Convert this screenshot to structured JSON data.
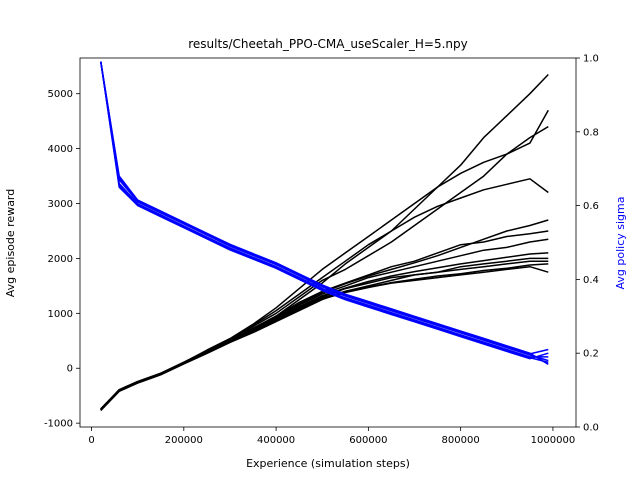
{
  "chart_data": {
    "type": "line",
    "title": "results/Cheetah_PPO-CMA_useScaler_H=5.npy",
    "xlabel": "Experience (simulation steps)",
    "ylabel_left": "Avg episode reward",
    "ylabel_right": "Avg policy sigma",
    "xlim": [
      -25000,
      1050000
    ],
    "ylim_left": [
      -1070,
      5650
    ],
    "ylim_right": [
      0.0,
      1.0
    ],
    "x_ticks": [
      0,
      200000,
      400000,
      600000,
      800000,
      1000000
    ],
    "y_left_ticks": [
      -1000,
      0,
      1000,
      2000,
      3000,
      4000,
      5000
    ],
    "y_right_ticks": [
      0.0,
      0.2,
      0.4,
      0.6,
      0.8,
      1.0
    ],
    "x_tick_labels": [
      "0",
      "200000",
      "400000",
      "600000",
      "800000",
      "1000000"
    ],
    "y_left_tick_labels": [
      "-1000",
      "0",
      "1000",
      "2000",
      "3000",
      "4000",
      "5000"
    ],
    "y_right_tick_labels": [
      "0.0",
      "0.2",
      "0.4",
      "0.6",
      "0.8",
      "1.0"
    ],
    "grid": false,
    "legend": "none",
    "colors": {
      "reward": "#000000",
      "sigma": "#0000ff",
      "right_axis_label": "#0000ff"
    },
    "x": [
      20000,
      60000,
      100000,
      150000,
      200000,
      250000,
      300000,
      350000,
      400000,
      450000,
      500000,
      550000,
      600000,
      650000,
      700000,
      750000,
      800000,
      850000,
      900000,
      950000,
      990000
    ],
    "reward_series": [
      {
        "axis": "left",
        "values": [
          -750,
          -400,
          -250,
          -100,
          100,
          300,
          500,
          700,
          900,
          1100,
          1300,
          1450,
          1550,
          1650,
          1700,
          1750,
          1800,
          1850,
          1900,
          1950,
          1950
        ]
      },
      {
        "axis": "left",
        "values": [
          -760,
          -410,
          -260,
          -110,
          90,
          280,
          480,
          720,
          950,
          1250,
          1550,
          1900,
          2200,
          2500,
          2900,
          3300,
          3700,
          4200,
          4600,
          5000,
          5350
        ]
      },
      {
        "axis": "left",
        "values": [
          -740,
          -390,
          -240,
          -90,
          110,
          320,
          520,
          760,
          1000,
          1300,
          1600,
          1800,
          2050,
          2300,
          2600,
          2900,
          3200,
          3500,
          3900,
          4200,
          4400
        ]
      },
      {
        "axis": "left",
        "values": [
          -770,
          -420,
          -270,
          -120,
          80,
          270,
          470,
          650,
          850,
          1050,
          1250,
          1400,
          1500,
          1600,
          1700,
          1750,
          1850,
          1900,
          1950,
          2000,
          2000
        ]
      },
      {
        "axis": "left",
        "values": [
          -750,
          -400,
          -250,
          -100,
          100,
          310,
          510,
          730,
          950,
          1200,
          1400,
          1550,
          1700,
          1850,
          1950,
          2100,
          2250,
          2300,
          2400,
          2450,
          2500
        ]
      },
      {
        "axis": "left",
        "values": [
          -760,
          -405,
          -255,
          -105,
          95,
          290,
          490,
          680,
          880,
          1080,
          1280,
          1400,
          1480,
          1560,
          1620,
          1680,
          1720,
          1780,
          1820,
          1880,
          1900
        ]
      },
      {
        "axis": "left",
        "values": [
          -745,
          -395,
          -245,
          -95,
          105,
          330,
          540,
          800,
          1100,
          1450,
          1800,
          2100,
          2400,
          2700,
          3000,
          3300,
          3550,
          3750,
          3900,
          4100,
          4700
        ]
      },
      {
        "axis": "left",
        "values": [
          -755,
          -400,
          -250,
          -100,
          100,
          300,
          500,
          700,
          920,
          1150,
          1350,
          1500,
          1650,
          1750,
          1850,
          1950,
          2050,
          2150,
          2200,
          2300,
          2350
        ]
      },
      {
        "axis": "left",
        "values": [
          -765,
          -415,
          -265,
          -115,
          85,
          275,
          475,
          660,
          860,
          1060,
          1260,
          1380,
          1470,
          1550,
          1600,
          1650,
          1700,
          1750,
          1800,
          1850,
          1750
        ]
      },
      {
        "axis": "left",
        "values": [
          -750,
          -400,
          -250,
          -100,
          100,
          320,
          530,
          780,
          1050,
          1350,
          1650,
          1950,
          2250,
          2500,
          2750,
          2950,
          3100,
          3250,
          3350,
          3450,
          3200
        ]
      },
      {
        "axis": "left",
        "values": [
          -740,
          -395,
          -248,
          -98,
          102,
          305,
          505,
          710,
          930,
          1170,
          1380,
          1540,
          1680,
          1800,
          1920,
          2050,
          2200,
          2350,
          2500,
          2600,
          2700
        ]
      },
      {
        "axis": "left",
        "values": [
          -758,
          -408,
          -258,
          -108,
          92,
          285,
          485,
          690,
          900,
          1120,
          1320,
          1460,
          1580,
          1680,
          1760,
          1830,
          1900,
          1960,
          2020,
          2080,
          2100
        ]
      }
    ],
    "sigma_series": [
      {
        "axis": "right",
        "values": [
          0.99,
          0.68,
          0.615,
          0.585,
          0.555,
          0.525,
          0.495,
          0.47,
          0.445,
          0.415,
          0.385,
          0.36,
          0.34,
          0.32,
          0.3,
          0.28,
          0.26,
          0.24,
          0.22,
          0.2,
          0.17
        ]
      },
      {
        "axis": "right",
        "values": [
          0.99,
          0.67,
          0.61,
          0.58,
          0.55,
          0.52,
          0.49,
          0.465,
          0.44,
          0.41,
          0.38,
          0.355,
          0.335,
          0.315,
          0.295,
          0.275,
          0.255,
          0.235,
          0.215,
          0.195,
          0.18
        ]
      },
      {
        "axis": "right",
        "values": [
          0.99,
          0.66,
          0.605,
          0.575,
          0.545,
          0.515,
          0.485,
          0.46,
          0.435,
          0.405,
          0.375,
          0.35,
          0.33,
          0.31,
          0.29,
          0.27,
          0.25,
          0.23,
          0.21,
          0.19,
          0.19
        ]
      },
      {
        "axis": "right",
        "values": [
          0.99,
          0.65,
          0.6,
          0.57,
          0.54,
          0.51,
          0.48,
          0.455,
          0.43,
          0.4,
          0.37,
          0.345,
          0.325,
          0.305,
          0.285,
          0.265,
          0.245,
          0.225,
          0.205,
          0.185,
          0.2
        ]
      },
      {
        "axis": "right",
        "values": [
          0.99,
          0.675,
          0.612,
          0.582,
          0.552,
          0.522,
          0.492,
          0.468,
          0.442,
          0.412,
          0.382,
          0.358,
          0.338,
          0.318,
          0.298,
          0.278,
          0.258,
          0.238,
          0.218,
          0.198,
          0.21
        ]
      },
      {
        "axis": "right",
        "values": [
          0.99,
          0.655,
          0.602,
          0.572,
          0.542,
          0.512,
          0.482,
          0.458,
          0.432,
          0.402,
          0.372,
          0.348,
          0.328,
          0.308,
          0.288,
          0.268,
          0.248,
          0.228,
          0.208,
          0.188,
          0.175
        ]
      }
    ]
  }
}
